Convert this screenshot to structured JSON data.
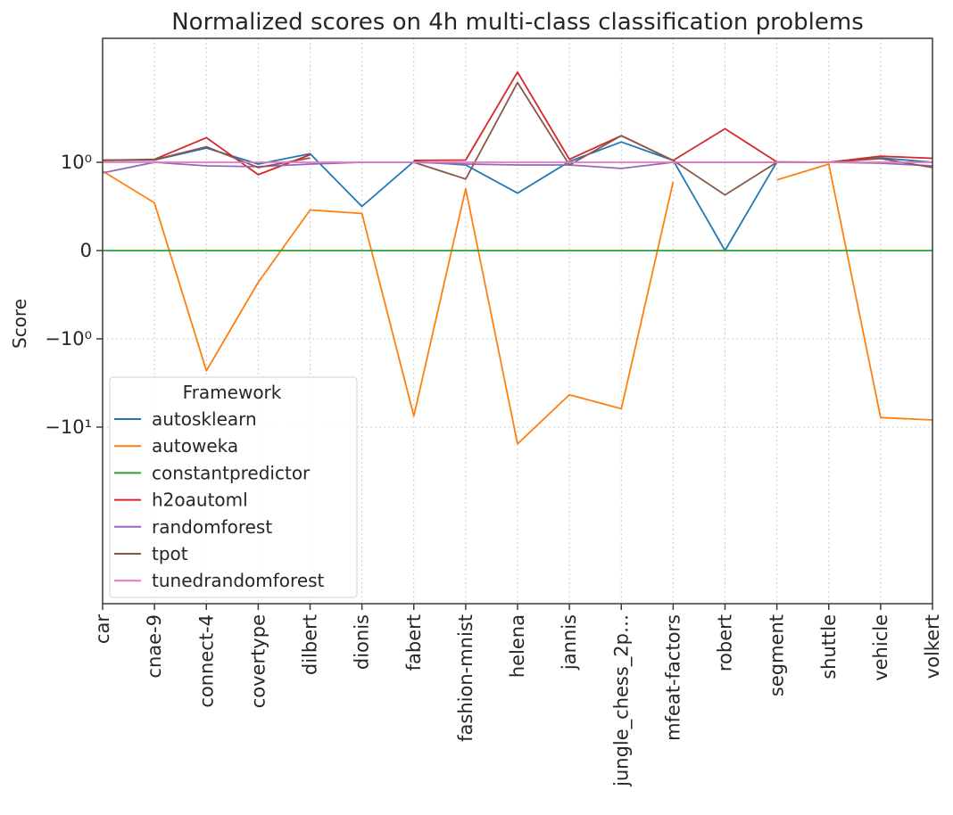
{
  "chart_data": {
    "type": "line",
    "title": "Normalized scores on 4h multi-class classification problems",
    "xlabel": "",
    "ylabel": "Score",
    "yscale": "symlog",
    "ylim": [
      -20,
      40
    ],
    "y_ticks": [
      {
        "value": 1,
        "label": "10⁰"
      },
      {
        "value": 0,
        "label": "0"
      },
      {
        "value": -1,
        "label": "−10⁰"
      },
      {
        "value": -10,
        "label": "−10¹"
      }
    ],
    "grid": true,
    "legend": {
      "title": "Framework",
      "placement": "lower-left"
    },
    "categories": [
      "car",
      "cnae-9",
      "connect-4",
      "covertype",
      "dilbert",
      "dionis",
      "fabert",
      "fashion-mnist",
      "helena",
      "jannis",
      "jungle_chess_2p…",
      "mfeat-factors",
      "robert",
      "segment",
      "shuttle",
      "vehicle",
      "volkert"
    ],
    "series": [
      {
        "name": "autosklearn",
        "color": "#1f77b4",
        "values": [
          1.05,
          1.06,
          1.45,
          0.98,
          1.25,
          0.5,
          1.02,
          0.97,
          0.65,
          1.02,
          1.7,
          1.05,
          0,
          1.01,
          1.0,
          1.12,
          1.0
        ]
      },
      {
        "name": "autoweka",
        "color": "#ff7f0e",
        "values": [
          0.9,
          0.54,
          -2.3,
          -0.36,
          0.46,
          0.42,
          -7.5,
          0.7,
          -15.5,
          -4.3,
          -6.2,
          0.78,
          null,
          0.8,
          0.98,
          -7.8,
          -8.3
        ]
      },
      {
        "name": "constantpredictor",
        "color": "#2ca02c",
        "values": [
          0,
          0,
          0,
          0,
          0,
          0,
          0,
          0,
          0,
          0,
          0,
          0,
          0,
          0,
          0,
          0,
          0
        ]
      },
      {
        "name": "h2oautoml",
        "color": "#d62728",
        "values": [
          1.05,
          1.08,
          1.9,
          0.86,
          1.22,
          null,
          1.05,
          1.06,
          10.5,
          1.08,
          2.0,
          1.05,
          2.4,
          1.01,
          1.0,
          1.17,
          1.11
        ]
      },
      {
        "name": "randomforest",
        "color": "#9467bd",
        "values": [
          0.88,
          1.0,
          0.96,
          0.95,
          0.98,
          1.0,
          1.0,
          0.98,
          0.97,
          0.97,
          0.93,
          1.0,
          1.0,
          1.0,
          1.0,
          0.99,
          0.96
        ]
      },
      {
        "name": "tpot",
        "color": "#8c564b",
        "values": [
          1.06,
          1.07,
          1.5,
          0.94,
          1.12,
          null,
          1.0,
          0.81,
          8.0,
          0.97,
          2.0,
          1.05,
          0.63,
          1.0,
          1.0,
          1.1,
          0.94
        ]
      },
      {
        "name": "tunedrandomforest",
        "color": "#e377c2",
        "values": [
          1.0,
          1.0,
          1.0,
          1.0,
          1.0,
          1.0,
          1.0,
          1.0,
          1.0,
          1.0,
          1.0,
          1.0,
          1.0,
          1.0,
          1.0,
          1.0,
          1.0
        ]
      }
    ]
  }
}
